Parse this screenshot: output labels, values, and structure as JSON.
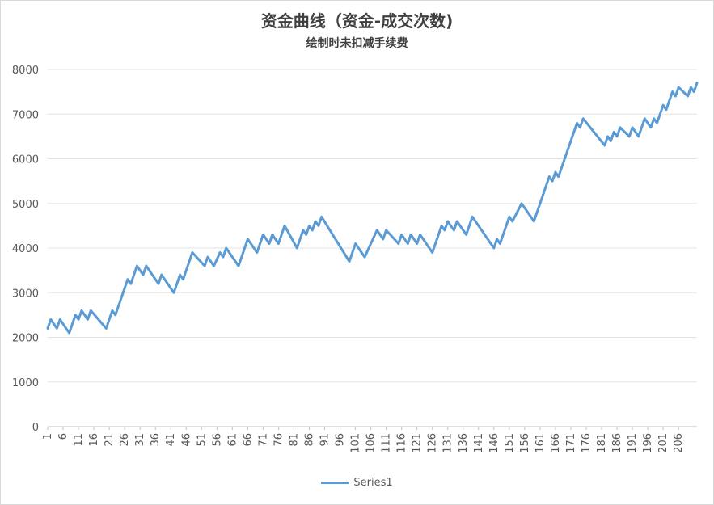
{
  "chart_data": {
    "type": "line",
    "title": "资金曲线（资金-成交次数)",
    "subtitle": "绘制时未扣减手续费",
    "xlabel": "",
    "ylabel": "",
    "ylim": [
      0,
      8000
    ],
    "y_ticks": [
      "0",
      "1000",
      "2000",
      "3000",
      "4000",
      "5000",
      "6000",
      "7000",
      "8000"
    ],
    "x_tick_labels": [
      "1",
      "6",
      "11",
      "16",
      "21",
      "26",
      "31",
      "36",
      "41",
      "46",
      "51",
      "56",
      "61",
      "66",
      "71",
      "76",
      "81",
      "86",
      "91",
      "96",
      "101",
      "106",
      "111",
      "116",
      "121",
      "126",
      "131",
      "136",
      "141",
      "146",
      "151",
      "156",
      "161",
      "166",
      "171",
      "176",
      "181",
      "186",
      "191",
      "196",
      "201",
      "206"
    ],
    "grid": true,
    "legend_position": "bottom",
    "series": [
      {
        "name": "Series1",
        "color": "#5b9bd5",
        "points": [
          [
            1,
            2200
          ],
          [
            2,
            2400
          ],
          [
            4,
            2200
          ],
          [
            5,
            2400
          ],
          [
            8,
            2100
          ],
          [
            10,
            2500
          ],
          [
            11,
            2400
          ],
          [
            12,
            2600
          ],
          [
            14,
            2400
          ],
          [
            15,
            2600
          ],
          [
            20,
            2200
          ],
          [
            22,
            2600
          ],
          [
            23,
            2500
          ],
          [
            27,
            3300
          ],
          [
            28,
            3200
          ],
          [
            30,
            3600
          ],
          [
            32,
            3400
          ],
          [
            33,
            3600
          ],
          [
            37,
            3200
          ],
          [
            38,
            3400
          ],
          [
            42,
            3000
          ],
          [
            44,
            3400
          ],
          [
            45,
            3300
          ],
          [
            48,
            3900
          ],
          [
            52,
            3600
          ],
          [
            53,
            3800
          ],
          [
            55,
            3600
          ],
          [
            57,
            3900
          ],
          [
            58,
            3800
          ],
          [
            59,
            4000
          ],
          [
            63,
            3600
          ],
          [
            66,
            4200
          ],
          [
            69,
            3900
          ],
          [
            71,
            4300
          ],
          [
            73,
            4100
          ],
          [
            74,
            4300
          ],
          [
            76,
            4100
          ],
          [
            78,
            4500
          ],
          [
            82,
            4000
          ],
          [
            84,
            4400
          ],
          [
            85,
            4300
          ],
          [
            86,
            4500
          ],
          [
            87,
            4400
          ],
          [
            88,
            4600
          ],
          [
            89,
            4500
          ],
          [
            90,
            4700
          ],
          [
            99,
            3700
          ],
          [
            101,
            4100
          ],
          [
            104,
            3800
          ],
          [
            108,
            4400
          ],
          [
            110,
            4200
          ],
          [
            111,
            4400
          ],
          [
            115,
            4100
          ],
          [
            116,
            4300
          ],
          [
            118,
            4100
          ],
          [
            119,
            4300
          ],
          [
            121,
            4100
          ],
          [
            122,
            4300
          ],
          [
            126,
            3900
          ],
          [
            129,
            4500
          ],
          [
            130,
            4400
          ],
          [
            131,
            4600
          ],
          [
            133,
            4400
          ],
          [
            134,
            4600
          ],
          [
            137,
            4300
          ],
          [
            139,
            4700
          ],
          [
            146,
            4000
          ],
          [
            147,
            4200
          ],
          [
            148,
            4100
          ],
          [
            151,
            4700
          ],
          [
            152,
            4600
          ],
          [
            155,
            5000
          ],
          [
            159,
            4600
          ],
          [
            164,
            5600
          ],
          [
            165,
            5500
          ],
          [
            166,
            5700
          ],
          [
            167,
            5600
          ],
          [
            173,
            6800
          ],
          [
            174,
            6700
          ],
          [
            175,
            6900
          ],
          [
            182,
            6300
          ],
          [
            183,
            6500
          ],
          [
            184,
            6400
          ],
          [
            185,
            6600
          ],
          [
            186,
            6500
          ],
          [
            187,
            6700
          ],
          [
            190,
            6500
          ],
          [
            191,
            6700
          ],
          [
            193,
            6500
          ],
          [
            195,
            6900
          ],
          [
            197,
            6700
          ],
          [
            198,
            6900
          ],
          [
            199,
            6800
          ],
          [
            201,
            7200
          ],
          [
            202,
            7100
          ],
          [
            204,
            7500
          ],
          [
            205,
            7400
          ],
          [
            206,
            7600
          ],
          [
            209,
            7400
          ],
          [
            210,
            7600
          ],
          [
            211,
            7500
          ],
          [
            212,
            7700
          ]
        ]
      }
    ]
  }
}
